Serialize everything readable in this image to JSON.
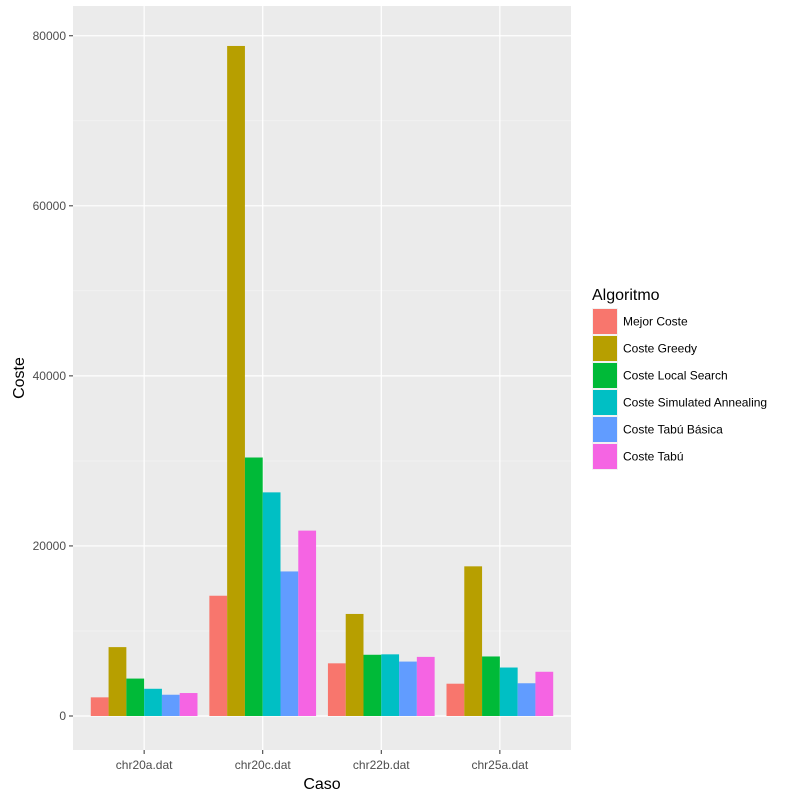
{
  "chart_data": {
    "type": "bar",
    "title": "",
    "xlabel": "Caso",
    "ylabel": "Coste",
    "categories": [
      "chr20a.dat",
      "chr20c.dat",
      "chr22b.dat",
      "chr25a.dat"
    ],
    "ylim": [
      -4000,
      83500
    ],
    "yticks": [
      0,
      20000,
      40000,
      60000,
      80000
    ],
    "grid": true,
    "legend": {
      "title": "Algoritmo",
      "placement": "right"
    },
    "series": [
      {
        "name": "Mejor Coste",
        "color": "#F8766D",
        "values": [
          2192,
          14142,
          6194,
          3796
        ]
      },
      {
        "name": "Coste Greedy",
        "color": "#B79F00",
        "values": [
          8100,
          78800,
          12000,
          17600
        ]
      },
      {
        "name": "Coste Local Search",
        "color": "#00BA38",
        "values": [
          4400,
          30400,
          7200,
          7000
        ]
      },
      {
        "name": "Coste Simulated Annealing",
        "color": "#00BFC4",
        "values": [
          3200,
          26300,
          7250,
          5700
        ]
      },
      {
        "name": "Coste Tabú Básica",
        "color": "#619CFF",
        "values": [
          2500,
          17000,
          6400,
          3850
        ]
      },
      {
        "name": "Coste Tabú",
        "color": "#F564E3",
        "values": [
          2700,
          21800,
          6950,
          5200
        ]
      }
    ]
  }
}
